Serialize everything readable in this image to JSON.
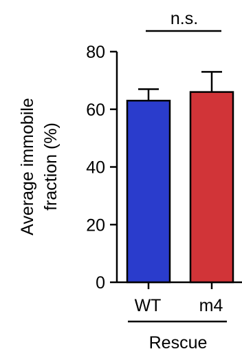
{
  "chart_data": {
    "type": "bar",
    "categories": [
      "WT",
      "m4"
    ],
    "values": [
      63,
      66
    ],
    "error_upper": [
      67,
      73
    ],
    "colors": [
      "#2a3ccc",
      "#d13438"
    ],
    "ylabel_lines": [
      "Average immobile",
      "fraction (%)"
    ],
    "ylim": [
      0,
      80
    ],
    "yticks": [
      0,
      20,
      40,
      60,
      80
    ],
    "group_label": "Rescue",
    "significance_label": "n.s.",
    "grid": false
  }
}
